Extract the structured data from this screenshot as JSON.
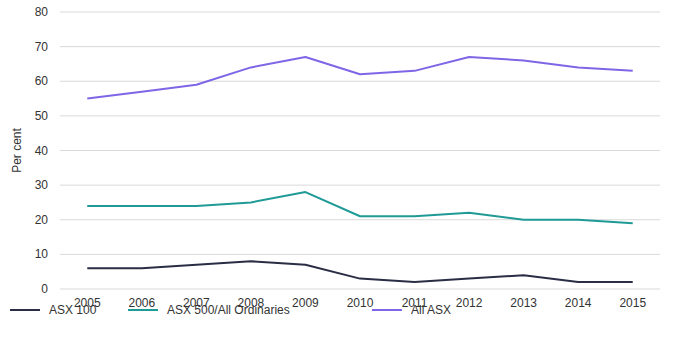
{
  "chart_data": {
    "type": "line",
    "y_label": "Per cent",
    "categories": [
      "2005",
      "2006",
      "2007",
      "2008",
      "2009",
      "2010",
      "2011",
      "2012",
      "2013",
      "2014",
      "2015"
    ],
    "series": [
      {
        "name": "ASX 100",
        "color": "#2a2e45",
        "values": [
          6,
          6,
          7,
          8,
          7,
          3,
          2,
          3,
          4,
          2,
          2
        ]
      },
      {
        "name": "ASX 500/All Ordinaries",
        "color": "#1f9a96",
        "values": [
          24,
          24,
          24,
          25,
          28,
          21,
          21,
          22,
          20,
          20,
          19
        ]
      },
      {
        "name": "All ASX",
        "color": "#7e66e6",
        "values": [
          55,
          57,
          59,
          64,
          67,
          62,
          63,
          67,
          66,
          64,
          63
        ]
      }
    ],
    "ylim": [
      0,
      80
    ],
    "yticks": [
      0,
      10,
      20,
      30,
      40,
      50,
      60,
      70,
      80
    ],
    "grid": true,
    "legend": "bottom"
  }
}
